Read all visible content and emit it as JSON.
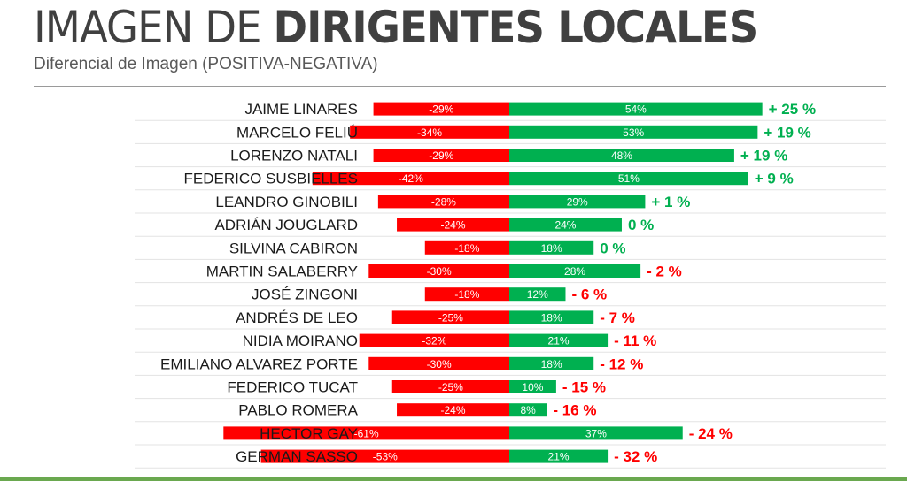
{
  "title": {
    "light": "IMAGEN DE ",
    "bold": "DIRIGENTES LOCALES"
  },
  "subtitle": "Diferencial de Imagen (POSITIVA-NEGATIVA)",
  "colors": {
    "negative": "#ff0000",
    "positive": "#00b050",
    "diff_positive": "#00b050",
    "diff_negative": "#ff0000",
    "row_line": "#e3e3e3"
  },
  "chart_data": {
    "type": "bar",
    "orientation": "horizontal-diverging",
    "title": "IMAGEN DE DIRIGENTES LOCALES",
    "subtitle": "Diferencial de Imagen (POSITIVA-NEGATIVA)",
    "categories": [
      "JAIME LINARES",
      "MARCELO FELIÚ",
      "LORENZO NATALI",
      "FEDERICO SUSBIELLES",
      "LEANDRO GINOBILI",
      "ADRIÁN JOUGLARD",
      "SILVINA CABIRON",
      "MARTIN SALABERRY",
      "JOSÉ ZINGONI",
      "ANDRÉS DE LEO",
      "NIDIA MOIRANO",
      "EMILIANO ALVAREZ PORTE",
      "FEDERICO TUCAT",
      "PABLO ROMERA",
      "HECTOR GAY",
      "GERMAN SASSO"
    ],
    "series": [
      {
        "name": "Negativa",
        "values": [
          -29,
          -34,
          -29,
          -42,
          -28,
          -24,
          -18,
          -30,
          -18,
          -25,
          -32,
          -30,
          -25,
          -24,
          -61,
          -53
        ],
        "labels": [
          "-29%",
          "-34%",
          "-29%",
          "-42%",
          "-28%",
          "-24%",
          "-18%",
          "-30%",
          "-18%",
          "-25%",
          "-32%",
          "-30%",
          "-25%",
          "-24%",
          "-61%",
          "-53%"
        ]
      },
      {
        "name": "Positiva",
        "values": [
          54,
          53,
          48,
          51,
          29,
          24,
          18,
          28,
          12,
          18,
          21,
          18,
          10,
          8,
          37,
          21
        ],
        "labels": [
          "54%",
          "53%",
          "48%",
          "51%",
          "29%",
          "24%",
          "18%",
          "28%",
          "12%",
          "18%",
          "21%",
          "18%",
          "10%",
          "8%",
          "37%",
          "21%"
        ]
      }
    ],
    "differential": [
      25,
      19,
      19,
      9,
      1,
      0,
      0,
      -2,
      -6,
      -7,
      -11,
      -12,
      -15,
      -16,
      -24,
      -32
    ],
    "differential_labels": [
      "+ 25 %",
      "+ 19 %",
      "+ 19 %",
      "+ 9 %",
      "+ 1 %",
      "0 %",
      "0 %",
      "- 2 %",
      "- 6 %",
      "- 7 %",
      "- 11 %",
      "- 12 %",
      "- 15 %",
      "- 16 %",
      "- 24 %",
      "- 32 %"
    ]
  }
}
